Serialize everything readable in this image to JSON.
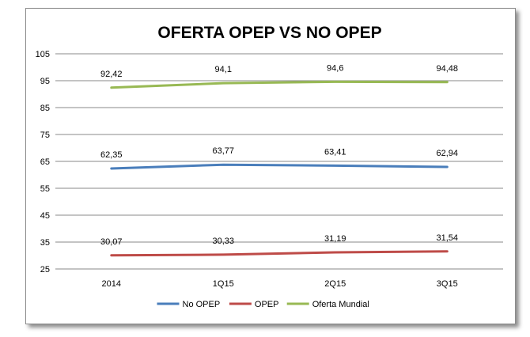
{
  "chart_data": {
    "type": "line",
    "title": "OFERTA OPEP VS NO OPEP",
    "xlabel": "",
    "ylabel": "",
    "categories": [
      "2014",
      "1Q15",
      "2Q15",
      "3Q15"
    ],
    "ylim": [
      25,
      105
    ],
    "yticks": [
      "105",
      "95",
      "85",
      "75",
      "65",
      "55",
      "45",
      "35",
      "25"
    ],
    "grid": true,
    "legend_position": "bottom",
    "series": [
      {
        "name": "No OPEP",
        "color": "#4a7ebb",
        "values": [
          62.35,
          63.77,
          63.41,
          62.94
        ],
        "labels": [
          "62,35",
          "63,77",
          "63,41",
          "62,94"
        ]
      },
      {
        "name": "OPEP",
        "color": "#be4b48",
        "values": [
          30.07,
          30.33,
          31.19,
          31.54
        ],
        "labels": [
          "30,07",
          "30,33",
          "31,19",
          "31,54"
        ]
      },
      {
        "name": "Oferta Mundial",
        "color": "#98b954",
        "values": [
          92.42,
          94.1,
          94.6,
          94.48
        ],
        "labels": [
          "92,42",
          "94,1",
          "94,6",
          "94,48"
        ]
      }
    ]
  }
}
